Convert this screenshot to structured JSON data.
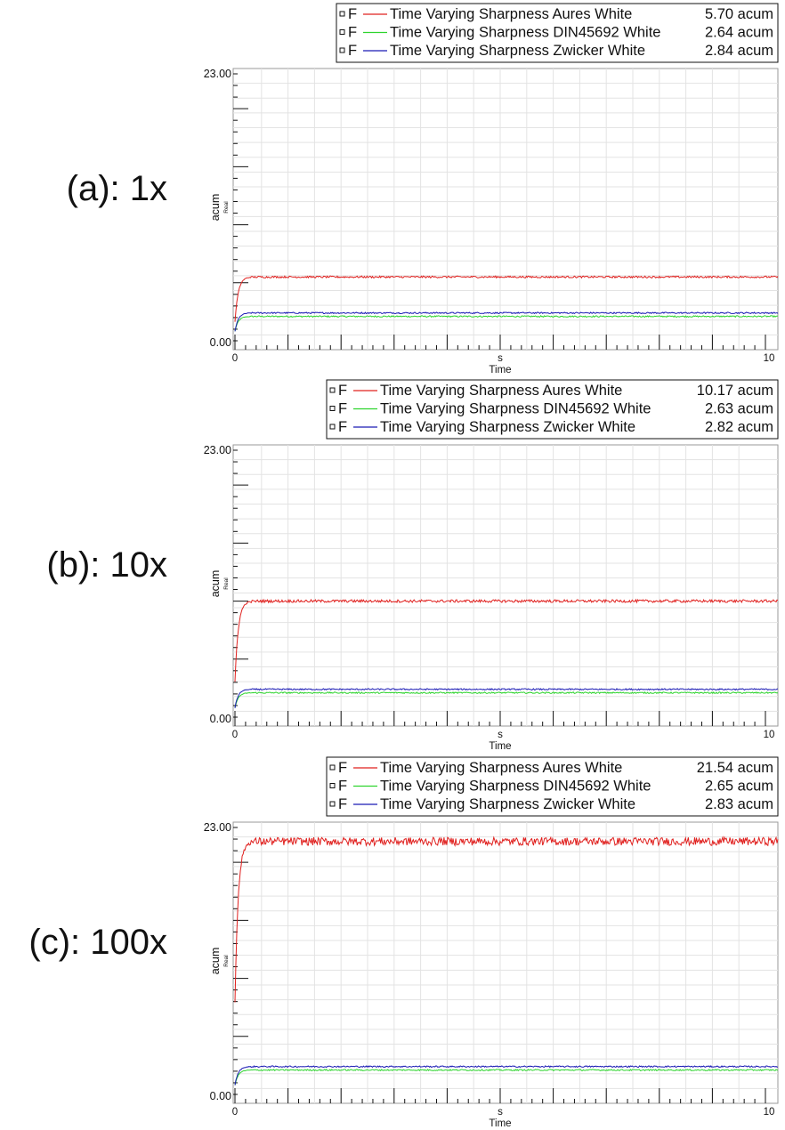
{
  "chart_data": [
    {
      "type": "line",
      "panel_label": "(a): 1x",
      "xlabel": "Time",
      "xunit": "s",
      "ylabel": "acum",
      "ysublabel": "Real",
      "xlim": [
        0,
        10
      ],
      "ylim": [
        0,
        23
      ],
      "x_tick_labels": [
        "0",
        "10"
      ],
      "y_tick_labels": [
        "23.00",
        "0.00"
      ],
      "grid": true,
      "legend_placement": "top-right",
      "series": [
        {
          "marker": "F",
          "name": "Time Varying Sharpness Aures White",
          "value": "5.70 acum",
          "color": "#e0201e",
          "level": 5.5,
          "start": 1.6,
          "noise": 0.08
        },
        {
          "marker": "F",
          "name": "Time Varying Sharpness DIN45692 White",
          "value": "2.64 acum",
          "color": "#2ed42e",
          "level": 2.1,
          "start": 0.8,
          "noise": 0.06
        },
        {
          "marker": "F",
          "name": "Time Varying Sharpness Zwicker White",
          "value": "2.84 acum",
          "color": "#1a1ab4",
          "level": 2.4,
          "start": 0.8,
          "noise": 0.06
        }
      ]
    },
    {
      "type": "line",
      "panel_label": "(b): 10x",
      "xlabel": "Time",
      "xunit": "s",
      "ylabel": "acum",
      "ysublabel": "Real",
      "xlim": [
        0,
        10
      ],
      "ylim": [
        0,
        23
      ],
      "x_tick_labels": [
        "0",
        "10"
      ],
      "y_tick_labels": [
        "23.00",
        "0.00"
      ],
      "grid": true,
      "legend_placement": "top-right",
      "series": [
        {
          "marker": "F",
          "name": "Time Varying Sharpness Aures White",
          "value": "10.17 acum",
          "color": "#e0201e",
          "level": 10.0,
          "start": 3.0,
          "noise": 0.12
        },
        {
          "marker": "F",
          "name": "Time Varying Sharpness DIN45692 White",
          "value": "2.63 acum",
          "color": "#2ed42e",
          "level": 2.1,
          "start": 0.8,
          "noise": 0.06
        },
        {
          "marker": "F",
          "name": "Time Varying Sharpness Zwicker White",
          "value": "2.82 acum",
          "color": "#1a1ab4",
          "level": 2.4,
          "start": 0.8,
          "noise": 0.06
        }
      ]
    },
    {
      "type": "line",
      "panel_label": "(c): 100x",
      "xlabel": "Time",
      "xunit": "s",
      "ylabel": "acum",
      "ysublabel": "Real",
      "xlim": [
        0,
        10
      ],
      "ylim": [
        0,
        23
      ],
      "x_tick_labels": [
        "0",
        "10"
      ],
      "y_tick_labels": [
        "23.00",
        "0.00"
      ],
      "grid": true,
      "legend_placement": "top-right",
      "series": [
        {
          "marker": "F",
          "name": "Time Varying Sharpness Aures White",
          "value": "21.54 acum",
          "color": "#e0201e",
          "level": 21.8,
          "start": 8.0,
          "noise": 0.35
        },
        {
          "marker": "F",
          "name": "Time Varying Sharpness DIN45692 White",
          "value": "2.65 acum",
          "color": "#2ed42e",
          "level": 2.1,
          "start": 0.8,
          "noise": 0.06
        },
        {
          "marker": "F",
          "name": "Time Varying Sharpness Zwicker White",
          "value": "2.83 acum",
          "color": "#1a1ab4",
          "level": 2.4,
          "start": 0.8,
          "noise": 0.06
        }
      ]
    }
  ]
}
